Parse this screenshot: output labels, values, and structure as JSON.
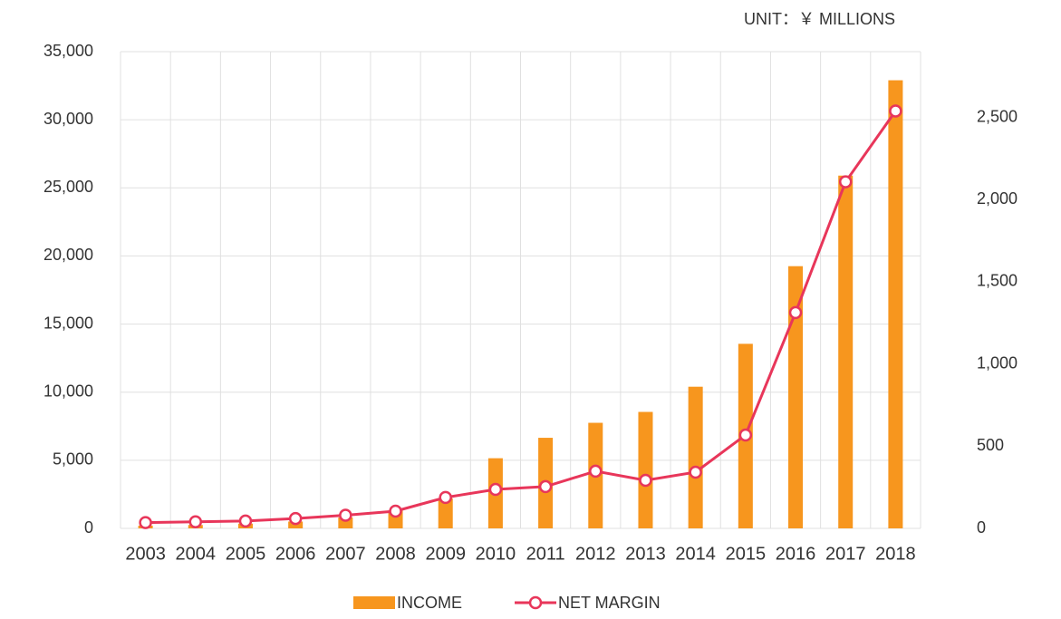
{
  "chart_data": {
    "type": "bar_line",
    "unit_label": "UNIT：￥ MILLIONS",
    "categories": [
      "2003",
      "2004",
      "2005",
      "2006",
      "2007",
      "2008",
      "2009",
      "2010",
      "2011",
      "2012",
      "2013",
      "2014",
      "2015",
      "2016",
      "2017",
      "2018"
    ],
    "series": [
      {
        "name": "INCOME",
        "type": "bar",
        "color": "#f7961e",
        "values": [
          200,
          250,
          350,
          500,
          800,
          1300,
          2200,
          5150,
          6650,
          7750,
          8550,
          10400,
          13550,
          19250,
          25900,
          32900
        ]
      },
      {
        "name": "NET MARGIN",
        "type": "line",
        "axis": "y2",
        "color": "#e8365a",
        "values": [
          35,
          40,
          45,
          60,
          80,
          105,
          188,
          237,
          254,
          348,
          292,
          342,
          568,
          1313,
          2108,
          2539
        ]
      }
    ],
    "ylim": [
      0,
      35000
    ],
    "yticks": [
      0,
      {
        "value": 5000,
        "label": "5,000"
      },
      {
        "value": 10000,
        "label": "10,000"
      },
      {
        "value": 15000,
        "label": "15,000"
      },
      {
        "value": 20000,
        "label": "20,000"
      },
      {
        "value": 25000,
        "label": "25,000"
      },
      {
        "value": 30000,
        "label": "30,000"
      },
      {
        "value": 35000,
        "label": "35,000"
      }
    ],
    "y2lim": [
      0,
      2900
    ],
    "y2ticks": [
      0,
      500,
      {
        "value": 1000,
        "label": "1,000"
      },
      {
        "value": 1500,
        "label": "1,500"
      },
      {
        "value": 2000,
        "label": "2,000"
      },
      {
        "value": 2500,
        "label": "2,500"
      }
    ],
    "grid": true
  }
}
